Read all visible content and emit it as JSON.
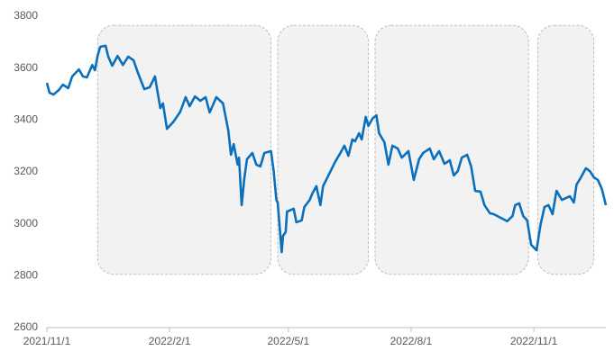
{
  "chart_data": {
    "type": "line",
    "x": [
      "2021/11/1",
      "2021/11/3",
      "2021/11/6",
      "2021/11/10",
      "2021/11/13",
      "2021/11/17",
      "2021/11/20",
      "2021/11/25",
      "2021/11/28",
      "2021/12/1",
      "2021/12/5",
      "2021/12/7",
      "2021/12/9",
      "2021/12/11",
      "2021/12/15",
      "2021/12/17",
      "2021/12/20",
      "2021/12/24",
      "2021/12/28",
      "2022/1/1",
      "2022/1/5",
      "2022/1/8",
      "2022/1/13",
      "2022/1/17",
      "2022/1/21",
      "2022/1/25",
      "2022/1/27",
      "2022/1/30",
      "2022/2/4",
      "2022/2/9",
      "2022/2/13",
      "2022/2/16",
      "2022/2/20",
      "2022/2/24",
      "2022/2/28",
      "2022/3/3",
      "2022/3/6",
      "2022/3/8",
      "2022/3/13",
      "2022/3/17",
      "2022/3/19",
      "2022/3/21",
      "2022/3/24",
      "2022/3/25",
      "2022/3/27",
      "2022/3/29",
      "2022/3/31",
      "2022/4/4",
      "2022/4/7",
      "2022/4/10",
      "2022/4/13",
      "2022/4/18",
      "2022/4/20",
      "2022/4/22",
      "2022/4/23",
      "2022/4/26",
      "2022/4/27",
      "2022/4/29",
      "2022/4/30",
      "2022/5/5",
      "2022/5/7",
      "2022/5/11",
      "2022/5/13",
      "2022/5/17",
      "2022/5/19",
      "2022/5/22",
      "2022/5/25",
      "2022/5/27",
      "2022/5/31",
      "2022/6/5",
      "2022/6/9",
      "2022/6/12",
      "2022/6/15",
      "2022/6/18",
      "2022/6/20",
      "2022/6/23",
      "2022/6/25",
      "2022/6/28",
      "2022/6/30",
      "2022/7/3",
      "2022/7/6",
      "2022/7/8",
      "2022/7/12",
      "2022/7/15",
      "2022/7/18",
      "2022/7/22",
      "2022/7/25",
      "2022/7/30",
      "2022/8/3",
      "2022/8/7",
      "2022/8/10",
      "2022/8/15",
      "2022/8/18",
      "2022/8/22",
      "2022/8/26",
      "2022/8/30",
      "2022/9/2",
      "2022/9/5",
      "2022/9/8",
      "2022/9/12",
      "2022/9/15",
      "2022/9/18",
      "2022/9/22",
      "2022/9/25",
      "2022/9/29",
      "2022/10/2",
      "2022/10/12",
      "2022/10/16",
      "2022/10/18",
      "2022/10/21",
      "2022/10/24",
      "2022/10/27",
      "2022/10/30",
      "2022/11/3",
      "2022/11/6",
      "2022/11/9",
      "2022/11/12",
      "2022/11/15",
      "2022/11/18",
      "2022/11/22",
      "2022/11/25",
      "2022/11/28",
      "2022/12/1",
      "2022/12/3",
      "2022/12/6",
      "2022/12/10",
      "2022/12/13",
      "2022/12/16",
      "2022/12/19",
      "2022/12/22",
      "2022/12/25"
    ],
    "series": [
      {
        "color": "#0a6fbd",
        "values": [
          3543,
          3505,
          3498,
          3516,
          3536,
          3523,
          3568,
          3595,
          3568,
          3564,
          3612,
          3592,
          3647,
          3682,
          3686,
          3644,
          3609,
          3647,
          3612,
          3644,
          3630,
          3585,
          3519,
          3526,
          3568,
          3446,
          3464,
          3366,
          3394,
          3432,
          3488,
          3453,
          3491,
          3474,
          3488,
          3429,
          3464,
          3488,
          3464,
          3359,
          3266,
          3307,
          3228,
          3255,
          3072,
          3176,
          3249,
          3273,
          3228,
          3221,
          3273,
          3280,
          3203,
          3092,
          3082,
          2891,
          2954,
          2968,
          3047,
          3058,
          3006,
          3013,
          3065,
          3092,
          3117,
          3145,
          3072,
          3145,
          3186,
          3238,
          3273,
          3301,
          3262,
          3325,
          3318,
          3349,
          3325,
          3412,
          3377,
          3405,
          3418,
          3349,
          3314,
          3228,
          3301,
          3290,
          3255,
          3280,
          3169,
          3249,
          3273,
          3290,
          3249,
          3280,
          3231,
          3245,
          3186,
          3203,
          3255,
          3266,
          3221,
          3127,
          3124,
          3072,
          3041,
          3037,
          3010,
          3030,
          3072,
          3079,
          3030,
          3013,
          2919,
          2898,
          2996,
          3065,
          3072,
          3037,
          3127,
          3092,
          3099,
          3106,
          3082,
          3151,
          3176,
          3214,
          3203,
          3179,
          3169,
          3134,
          3072
        ]
      }
    ],
    "regions": [
      {
        "x": [
          "2021/12/9",
          "2022/4/18"
        ],
        "y": [
          2805,
          3765
        ]
      },
      {
        "x": [
          "2022/4/23",
          "2022/6/30"
        ],
        "y": [
          2805,
          3765
        ]
      },
      {
        "x": [
          "2022/7/5",
          "2022/10/28"
        ],
        "y": [
          2805,
          3765
        ]
      },
      {
        "x": [
          "2022/11/4",
          "2022/12/16"
        ],
        "y": [
          2805,
          3765
        ]
      }
    ],
    "xlim": [
      "2021/11/1",
      "2022/12/25"
    ],
    "xticks": [
      "2021/11/1",
      "2022/2/1",
      "2022/5/1",
      "2022/8/1",
      "2022/11/1"
    ],
    "ylim": [
      2600,
      3800
    ],
    "yticks": [
      2600,
      2800,
      3000,
      3200,
      3400,
      3600,
      3800
    ],
    "grid": false
  }
}
